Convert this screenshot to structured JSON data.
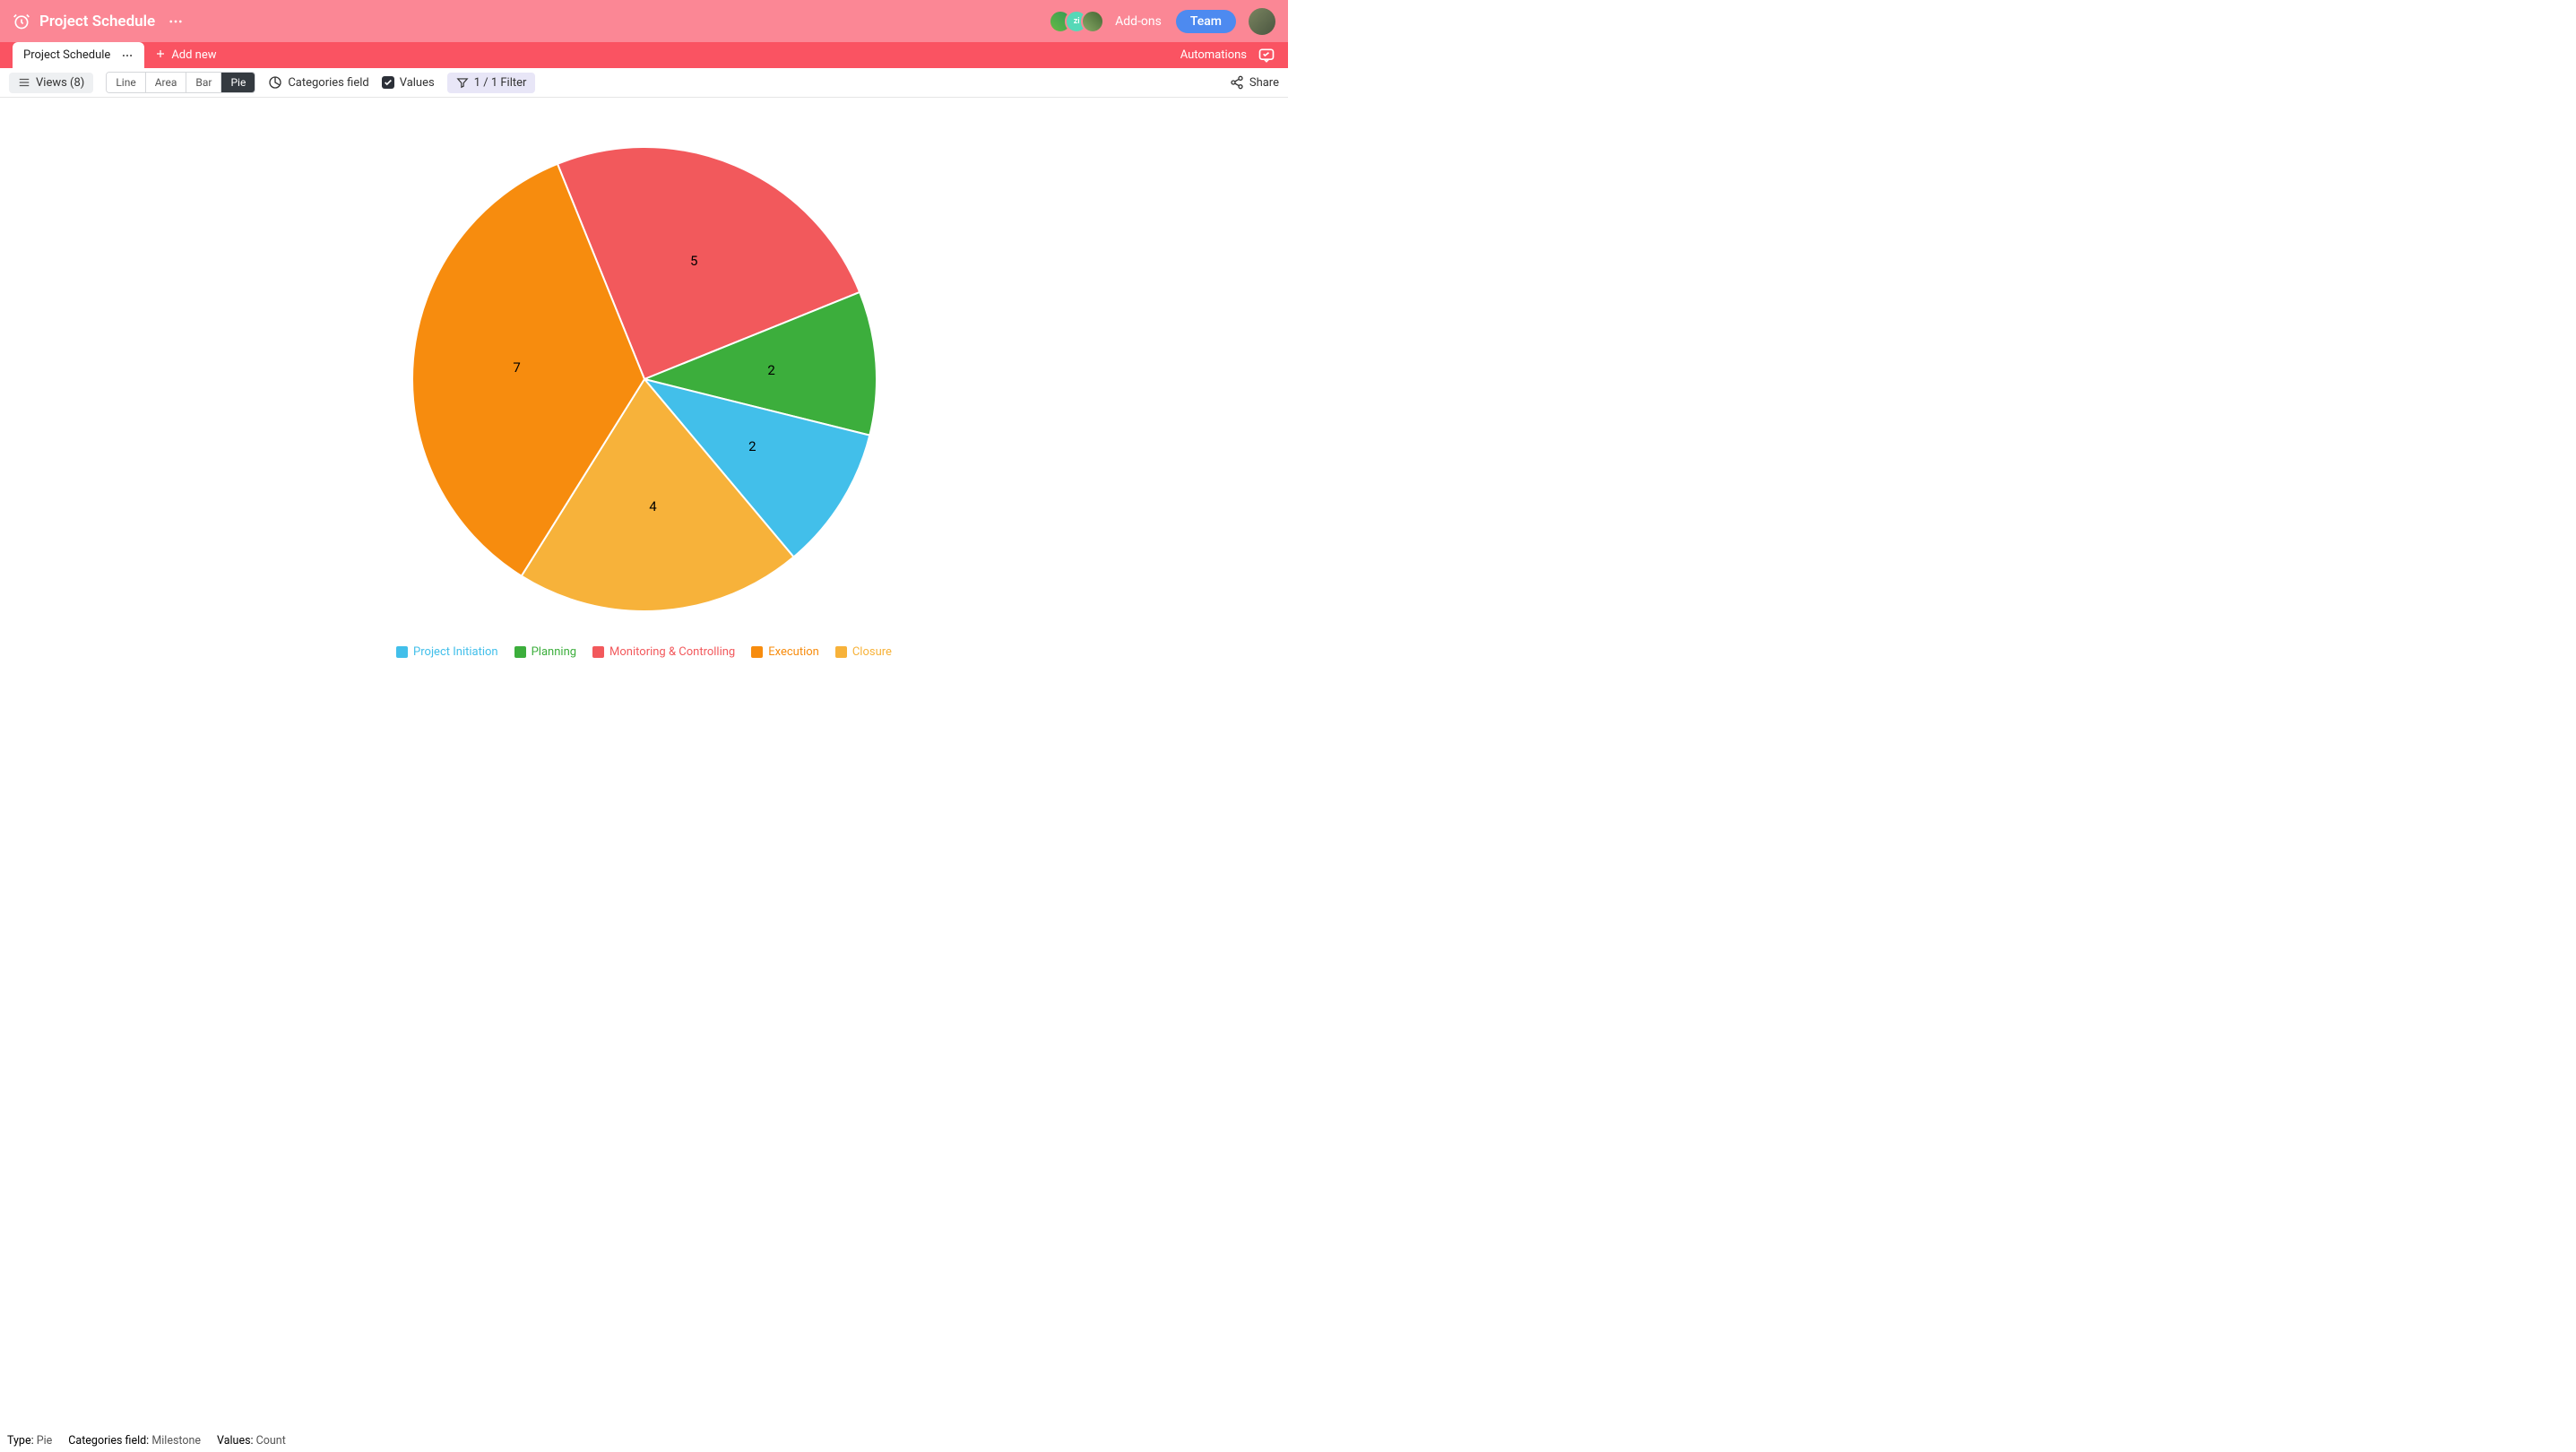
{
  "header": {
    "title": "Project Schedule",
    "addons_label": "Add-ons",
    "team_label": "Team",
    "avatar_initial": "zi"
  },
  "sub_header": {
    "tab_label": "Project Schedule",
    "add_new_label": "Add new",
    "automations_label": "Automations"
  },
  "toolbar": {
    "views_label": "Views (8)",
    "chart_types": [
      "Line",
      "Area",
      "Bar",
      "Pie"
    ],
    "active_type": "Pie",
    "categories_label": "Categories field",
    "values_label": "Values",
    "filter_label": "1 / 1 Filter",
    "share_label": "Share"
  },
  "chart": {
    "type": "pie",
    "radius": 259,
    "stroke_color": "#ffffff",
    "stroke_width": 2,
    "slices": [
      {
        "label": "Monitoring & Controlling",
        "value": 5,
        "color": "#f2595c",
        "legend_color": "#f2595c"
      },
      {
        "label": "Planning",
        "value": 2,
        "color": "#3cae3c",
        "legend_color": "#3cae3c"
      },
      {
        "label": "Project Initiation",
        "value": 2,
        "color": "#42bfea",
        "legend_color": "#42bfea"
      },
      {
        "label": "Closure",
        "value": 4,
        "color": "#f7b23a",
        "legend_color": "#f7b23a"
      },
      {
        "label": "Execution",
        "value": 7,
        "color": "#f78c0e",
        "legend_color": "#f78c0e"
      }
    ],
    "legend_order": [
      "Project Initiation",
      "Planning",
      "Monitoring & Controlling",
      "Execution",
      "Closure"
    ],
    "start_angle_deg": -22
  },
  "status": {
    "type_label": "Type:",
    "type_value": "Pie",
    "cat_label": "Categories field:",
    "cat_value": "Milestone",
    "val_label": "Values:",
    "val_value": "Count"
  }
}
